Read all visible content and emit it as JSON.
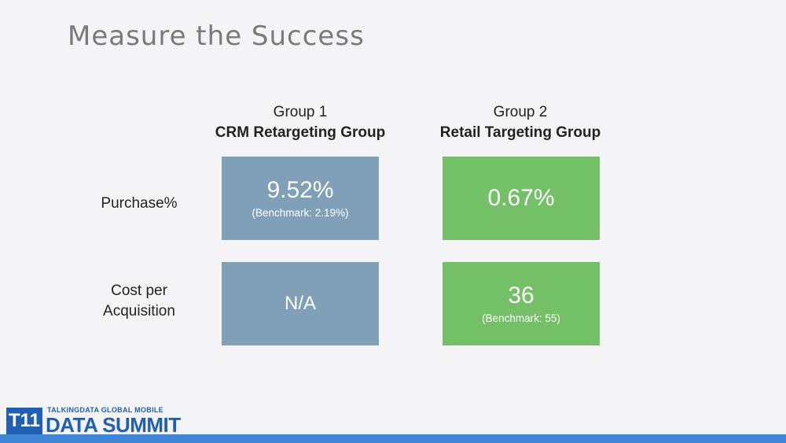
{
  "title": "Measure the Success",
  "groups": [
    {
      "group": "Group 1",
      "name": "CRM Retargeting Group"
    },
    {
      "group": "Group 2",
      "name": "Retail Targeting Group"
    }
  ],
  "rows": [
    {
      "label": "Purchase%"
    },
    {
      "label_line1": "Cost per",
      "label_line2": "Acquisition"
    }
  ],
  "cells": {
    "g1_purchase": {
      "value": "9.52%",
      "benchmark": "(Benchmark: 2.19%)"
    },
    "g2_purchase": {
      "value": "0.67%"
    },
    "g1_cpa": {
      "value": "N/A"
    },
    "g2_cpa": {
      "value": "36",
      "benchmark": "(Benchmark: 55)"
    }
  },
  "logo": {
    "mark": "T11",
    "top": "TALKINGDATA GLOBAL MOBILE",
    "main": "DATA SUMMIT"
  },
  "colors": {
    "group1_box": "#7fa0b6",
    "group2_box": "#73c067",
    "footer_bar": "#3f86d6"
  }
}
